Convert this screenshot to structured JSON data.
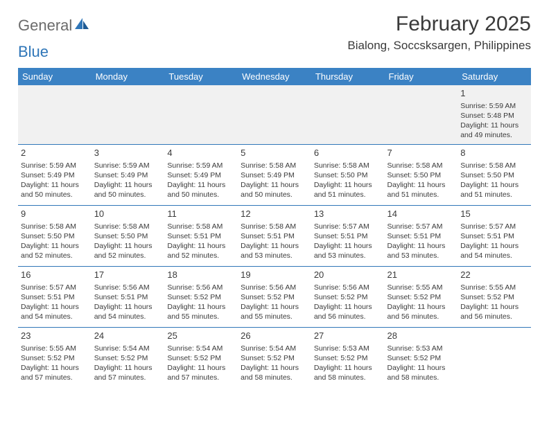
{
  "logo": {
    "text1": "General",
    "text2": "Blue"
  },
  "header": {
    "month_title": "February 2025",
    "location": "Bialong, Soccsksargen, Philippines"
  },
  "colors": {
    "header_bar": "#3b82c4",
    "row_divider": "#2f76b8",
    "first_row_bg": "#f1f1f1",
    "text": "#3a3a3a",
    "logo_gray": "#6b6b6b",
    "logo_blue": "#2f76b8",
    "page_bg": "#ffffff"
  },
  "day_headers": [
    "Sunday",
    "Monday",
    "Tuesday",
    "Wednesday",
    "Thursday",
    "Friday",
    "Saturday"
  ],
  "weeks": [
    [
      null,
      null,
      null,
      null,
      null,
      null,
      {
        "n": "1",
        "sunrise": "5:59 AM",
        "sunset": "5:48 PM",
        "dl": "11 hours and 49 minutes."
      }
    ],
    [
      {
        "n": "2",
        "sunrise": "5:59 AM",
        "sunset": "5:49 PM",
        "dl": "11 hours and 50 minutes."
      },
      {
        "n": "3",
        "sunrise": "5:59 AM",
        "sunset": "5:49 PM",
        "dl": "11 hours and 50 minutes."
      },
      {
        "n": "4",
        "sunrise": "5:59 AM",
        "sunset": "5:49 PM",
        "dl": "11 hours and 50 minutes."
      },
      {
        "n": "5",
        "sunrise": "5:58 AM",
        "sunset": "5:49 PM",
        "dl": "11 hours and 50 minutes."
      },
      {
        "n": "6",
        "sunrise": "5:58 AM",
        "sunset": "5:50 PM",
        "dl": "11 hours and 51 minutes."
      },
      {
        "n": "7",
        "sunrise": "5:58 AM",
        "sunset": "5:50 PM",
        "dl": "11 hours and 51 minutes."
      },
      {
        "n": "8",
        "sunrise": "5:58 AM",
        "sunset": "5:50 PM",
        "dl": "11 hours and 51 minutes."
      }
    ],
    [
      {
        "n": "9",
        "sunrise": "5:58 AM",
        "sunset": "5:50 PM",
        "dl": "11 hours and 52 minutes."
      },
      {
        "n": "10",
        "sunrise": "5:58 AM",
        "sunset": "5:50 PM",
        "dl": "11 hours and 52 minutes."
      },
      {
        "n": "11",
        "sunrise": "5:58 AM",
        "sunset": "5:51 PM",
        "dl": "11 hours and 52 minutes."
      },
      {
        "n": "12",
        "sunrise": "5:58 AM",
        "sunset": "5:51 PM",
        "dl": "11 hours and 53 minutes."
      },
      {
        "n": "13",
        "sunrise": "5:57 AM",
        "sunset": "5:51 PM",
        "dl": "11 hours and 53 minutes."
      },
      {
        "n": "14",
        "sunrise": "5:57 AM",
        "sunset": "5:51 PM",
        "dl": "11 hours and 53 minutes."
      },
      {
        "n": "15",
        "sunrise": "5:57 AM",
        "sunset": "5:51 PM",
        "dl": "11 hours and 54 minutes."
      }
    ],
    [
      {
        "n": "16",
        "sunrise": "5:57 AM",
        "sunset": "5:51 PM",
        "dl": "11 hours and 54 minutes."
      },
      {
        "n": "17",
        "sunrise": "5:56 AM",
        "sunset": "5:51 PM",
        "dl": "11 hours and 54 minutes."
      },
      {
        "n": "18",
        "sunrise": "5:56 AM",
        "sunset": "5:52 PM",
        "dl": "11 hours and 55 minutes."
      },
      {
        "n": "19",
        "sunrise": "5:56 AM",
        "sunset": "5:52 PM",
        "dl": "11 hours and 55 minutes."
      },
      {
        "n": "20",
        "sunrise": "5:56 AM",
        "sunset": "5:52 PM",
        "dl": "11 hours and 56 minutes."
      },
      {
        "n": "21",
        "sunrise": "5:55 AM",
        "sunset": "5:52 PM",
        "dl": "11 hours and 56 minutes."
      },
      {
        "n": "22",
        "sunrise": "5:55 AM",
        "sunset": "5:52 PM",
        "dl": "11 hours and 56 minutes."
      }
    ],
    [
      {
        "n": "23",
        "sunrise": "5:55 AM",
        "sunset": "5:52 PM",
        "dl": "11 hours and 57 minutes."
      },
      {
        "n": "24",
        "sunrise": "5:54 AM",
        "sunset": "5:52 PM",
        "dl": "11 hours and 57 minutes."
      },
      {
        "n": "25",
        "sunrise": "5:54 AM",
        "sunset": "5:52 PM",
        "dl": "11 hours and 57 minutes."
      },
      {
        "n": "26",
        "sunrise": "5:54 AM",
        "sunset": "5:52 PM",
        "dl": "11 hours and 58 minutes."
      },
      {
        "n": "27",
        "sunrise": "5:53 AM",
        "sunset": "5:52 PM",
        "dl": "11 hours and 58 minutes."
      },
      {
        "n": "28",
        "sunrise": "5:53 AM",
        "sunset": "5:52 PM",
        "dl": "11 hours and 58 minutes."
      },
      null
    ]
  ],
  "labels": {
    "sunrise": "Sunrise:",
    "sunset": "Sunset:",
    "daylight": "Daylight:"
  }
}
